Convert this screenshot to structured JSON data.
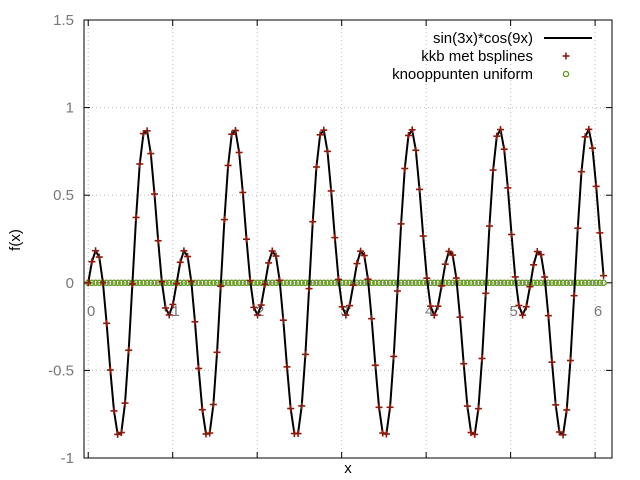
{
  "chart_data": {
    "type": "line",
    "title": "",
    "xlabel": "x",
    "ylabel": "f(x)",
    "xlim": [
      -0.05,
      6.2
    ],
    "ylim": [
      -1,
      1.5
    ],
    "xticks": [
      0,
      1,
      2,
      3,
      4,
      5,
      6
    ],
    "yticks": [
      -1,
      -0.5,
      0,
      0.5,
      1,
      1.5
    ],
    "ytick_labels": [
      "-1",
      "-0.5",
      "0",
      "0.5",
      "1",
      "1.5"
    ],
    "grid": true,
    "legend_position": "top-right",
    "series": [
      {
        "name": "sin(3x)*cos(9x)",
        "style": "line",
        "color": "#000000",
        "function": "sin(3x)*cos(9x)",
        "x_range": [
          0,
          6.1
        ],
        "samples": 141
      },
      {
        "name": "kkb met bsplines",
        "style": "plus",
        "color": "#8b1a0e",
        "function": "sin(3x)*cos(9x)",
        "x_range": [
          0,
          6.1
        ],
        "samples": 141
      },
      {
        "name": "knooppunten uniform",
        "style": "circle",
        "color": "#6a9a2a",
        "function": "0",
        "x_range": [
          0,
          6.1
        ],
        "samples": 141
      }
    ]
  }
}
